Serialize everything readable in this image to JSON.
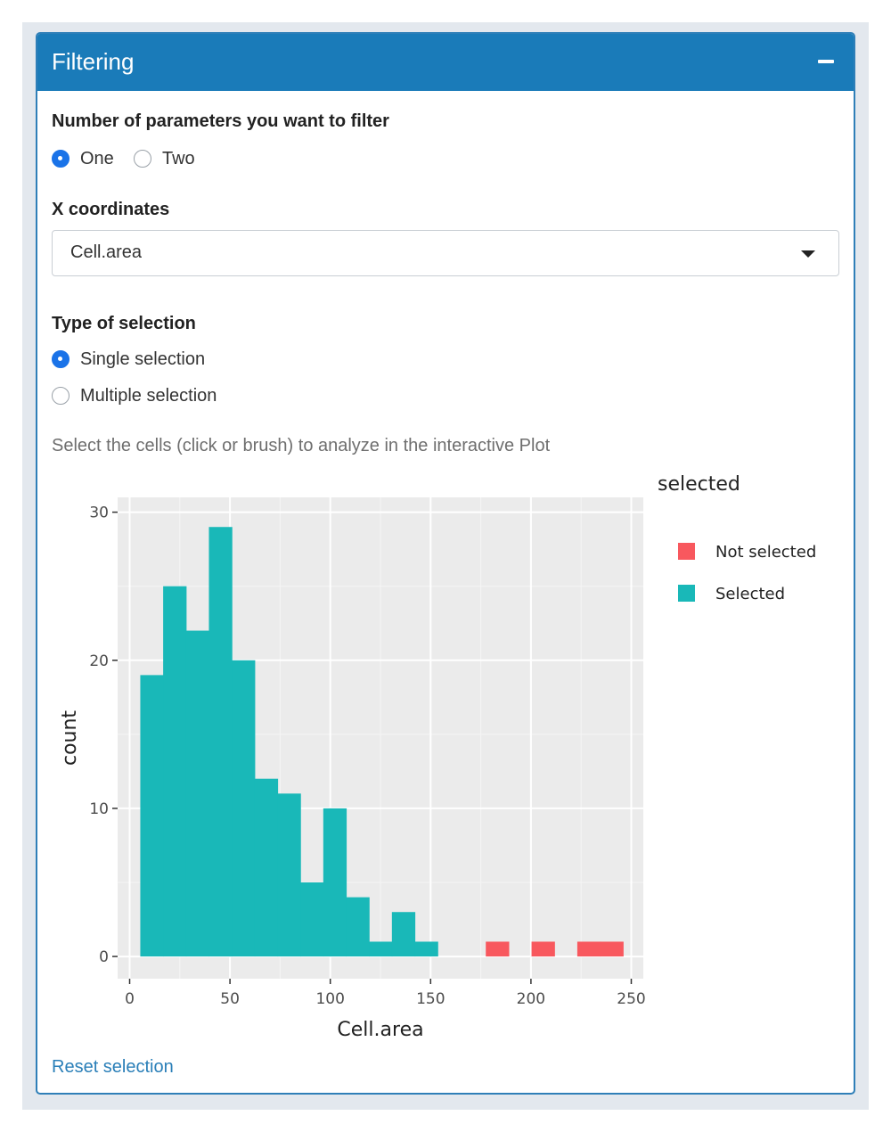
{
  "panel": {
    "title": "Filtering"
  },
  "params": {
    "label": "Number of parameters you want to filter",
    "options": [
      "One",
      "Two"
    ],
    "selected": "One"
  },
  "xcoord": {
    "label": "X coordinates",
    "value": "Cell.area"
  },
  "selection_type": {
    "label": "Type of selection",
    "options": [
      "Single selection",
      "Multiple selection"
    ],
    "selected": "Single selection"
  },
  "help_text": "Select the cells (click or brush) to analyze in the interactive Plot",
  "reset_label": "Reset selection",
  "chart_data": {
    "type": "bar",
    "xlabel": "Cell.area",
    "ylabel": "count",
    "xlim": [
      -6,
      256
    ],
    "ylim": [
      -1.5,
      31
    ],
    "x_ticks": [
      0,
      50,
      100,
      150,
      200,
      250
    ],
    "y_ticks": [
      0,
      10,
      20,
      30
    ],
    "bin_width": 11.4,
    "grid": true,
    "legend_title": "selected",
    "legend_position": "right",
    "series": [
      {
        "name": "Not selected",
        "color": "#f8585e",
        "bins": [
          {
            "x0": 177.5,
            "count": 1
          },
          {
            "x0": 200.3,
            "count": 1
          },
          {
            "x0": 223.1,
            "count": 1
          },
          {
            "x0": 234.5,
            "count": 1
          }
        ]
      },
      {
        "name": "Selected",
        "color": "#19b8b8",
        "bins": [
          {
            "x0": 5.3,
            "count": 19
          },
          {
            "x0": 16.7,
            "count": 25
          },
          {
            "x0": 28.1,
            "count": 22
          },
          {
            "x0": 39.5,
            "count": 29
          },
          {
            "x0": 50.9,
            "count": 20
          },
          {
            "x0": 62.3,
            "count": 12
          },
          {
            "x0": 73.7,
            "count": 11
          },
          {
            "x0": 85.1,
            "count": 5
          },
          {
            "x0": 96.5,
            "count": 10
          },
          {
            "x0": 107.9,
            "count": 4
          },
          {
            "x0": 119.3,
            "count": 1
          },
          {
            "x0": 130.7,
            "count": 3
          },
          {
            "x0": 142.1,
            "count": 1
          }
        ]
      }
    ]
  }
}
